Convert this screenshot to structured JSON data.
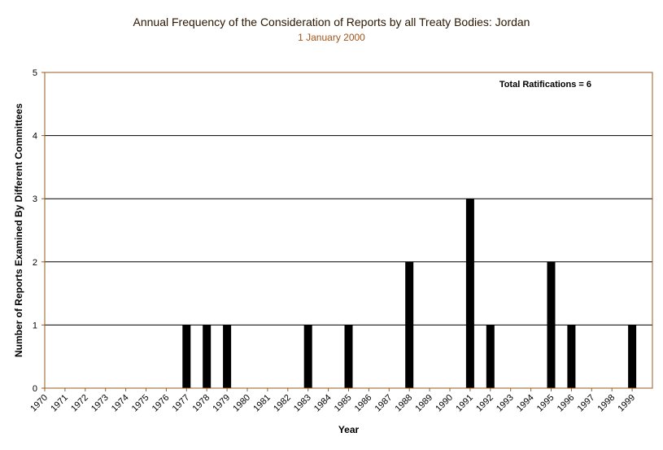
{
  "title": "Annual Frequency of the Consideration of Reports by all Treaty Bodies: Jordan",
  "subtitle": "1 January 2000",
  "colors": {
    "frame": "#9a5b1e",
    "gridline": "#000000",
    "bar": "#000000",
    "title": "#2b1700",
    "subtitle": "#a0541a"
  },
  "chart_data": {
    "type": "bar",
    "title": "Annual Frequency of the Consideration of Reports by all Treaty Bodies: Jordan",
    "subtitle": "1 January 2000",
    "xlabel": "Year",
    "ylabel": "Number of Reports Examined By Different Committees",
    "ylim": [
      0,
      5
    ],
    "yticks": [
      0,
      1,
      2,
      3,
      4,
      5
    ],
    "grid": true,
    "annotation": "Total Ratifications = 6",
    "annotation_position": "top-right",
    "categories": [
      "1970",
      "1971",
      "1972",
      "1973",
      "1974",
      "1975",
      "1976",
      "1977",
      "1978",
      "1979",
      "1980",
      "1981",
      "1982",
      "1983",
      "1984",
      "1985",
      "1986",
      "1987",
      "1988",
      "1989",
      "1990",
      "1991",
      "1992",
      "1993",
      "1994",
      "1995",
      "1996",
      "1997",
      "1998",
      "1999"
    ],
    "values": [
      0,
      0,
      0,
      0,
      0,
      0,
      0,
      1,
      1,
      1,
      0,
      0,
      0,
      1,
      0,
      1,
      0,
      0,
      2,
      0,
      0,
      3,
      1,
      0,
      0,
      2,
      1,
      0,
      0,
      1
    ]
  }
}
